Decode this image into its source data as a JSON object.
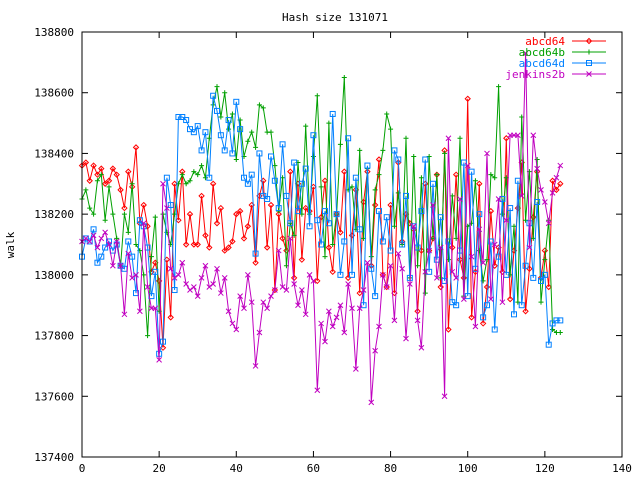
{
  "chart_data": {
    "type": "line",
    "title": "Hash size 131071",
    "xlabel": "",
    "ylabel": "walk",
    "xlim": [
      0,
      140
    ],
    "ylim": [
      137400,
      138800
    ],
    "xticks": [
      0,
      20,
      40,
      60,
      80,
      100,
      120,
      140
    ],
    "yticks": [
      137400,
      137600,
      137800,
      138000,
      138200,
      138400,
      138600,
      138800
    ],
    "legend_position": "top-right",
    "grid": false,
    "series": [
      {
        "name": "abcd64",
        "color": "#ff0000",
        "marker": "diamond",
        "values": [
          138360,
          138370,
          138310,
          138360,
          138330,
          138350,
          138300,
          138310,
          138350,
          138330,
          138280,
          138220,
          138340,
          138290,
          138420,
          138170,
          138230,
          138160,
          138010,
          138040,
          137980,
          137760,
          138050,
          137860,
          138300,
          138180,
          138340,
          138100,
          138200,
          138100,
          138100,
          138260,
          138130,
          138090,
          138300,
          138170,
          138220,
          138080,
          138090,
          138110,
          138200,
          138210,
          138120,
          138160,
          138230,
          138040,
          138260,
          138310,
          138090,
          138230,
          137950,
          138200,
          138120,
          138080,
          138340,
          137990,
          138300,
          138050,
          138220,
          138210,
          138290,
          137980,
          138190,
          138310,
          138090,
          138010,
          138200,
          138140,
          138340,
          137990,
          138130,
          138280,
          137940,
          138240,
          138340,
          138030,
          138230,
          138380,
          138000,
          137960,
          138230,
          137940,
          138370,
          138110,
          138200,
          138170,
          138150,
          137880,
          138080,
          138300,
          138080,
          138120,
          138330,
          137960,
          138410,
          137820,
          138090,
          138330,
          138050,
          137990,
          138580,
          137860,
          138010,
          138300,
          137840,
          137960,
          138210,
          138030,
          138090,
          138010,
          138450,
          137920,
          138080,
          138220,
          138370,
          137880,
          138020,
          138190,
          138340,
          137990,
          138080,
          137960,
          138310,
          138280,
          138300
        ]
      },
      {
        "name": "abcd64b",
        "color": "#00a000",
        "marker": "plus",
        "values": [
          138250,
          138280,
          138220,
          138200,
          138310,
          138330,
          138180,
          138290,
          138200,
          138120,
          138030,
          138200,
          138140,
          138300,
          138100,
          138080,
          138000,
          137800,
          138060,
          138190,
          137880,
          138200,
          138140,
          138100,
          138200,
          138300,
          138330,
          138300,
          138310,
          138340,
          138330,
          138360,
          138320,
          138450,
          138560,
          138620,
          138520,
          138600,
          138480,
          138530,
          138380,
          138510,
          138390,
          138440,
          138470,
          138420,
          138560,
          138550,
          138470,
          138470,
          138360,
          138210,
          138320,
          138030,
          138170,
          138130,
          138370,
          138200,
          138490,
          138200,
          138390,
          138590,
          138290,
          138060,
          138500,
          138100,
          138200,
          138430,
          138650,
          138280,
          138290,
          138150,
          138410,
          138120,
          138350,
          138060,
          138280,
          138330,
          138410,
          138530,
          138480,
          138160,
          138270,
          138100,
          138450,
          137990,
          138390,
          138030,
          138320,
          137940,
          138390,
          138120,
          138330,
          137990,
          138400,
          138050,
          138260,
          138120,
          138450,
          137930,
          138160,
          138170,
          138310,
          138080,
          137980,
          138050,
          138330,
          138320,
          138620,
          138200,
          138320,
          138000,
          138160,
          137910,
          138520,
          138180,
          138340,
          138120,
          138380,
          137910,
          138050,
          138180,
          137820,
          137810,
          137810
        ]
      },
      {
        "name": "abcd64d",
        "color": "#0080ff",
        "marker": "square",
        "values": [
          138060,
          138120,
          138110,
          138150,
          138040,
          138060,
          138090,
          138110,
          138080,
          138100,
          138030,
          138020,
          138110,
          138060,
          137940,
          138180,
          138160,
          138090,
          137930,
          138010,
          137740,
          137780,
          138320,
          138230,
          137950,
          138520,
          138520,
          138510,
          138480,
          138470,
          138490,
          138410,
          138470,
          138320,
          138590,
          138540,
          138460,
          138410,
          138510,
          138400,
          138570,
          138480,
          138320,
          138300,
          138330,
          138070,
          138400,
          138260,
          138250,
          138390,
          138310,
          138220,
          138430,
          138260,
          138170,
          138370,
          138210,
          138300,
          138350,
          138160,
          138460,
          138180,
          138100,
          138210,
          138170,
          138530,
          138200,
          138000,
          138110,
          138450,
          138000,
          138320,
          138150,
          137900,
          138360,
          138020,
          137930,
          138210,
          138110,
          138190,
          138080,
          138410,
          138380,
          138100,
          138260,
          137990,
          138160,
          138090,
          138210,
          138380,
          138010,
          138300,
          138050,
          138190,
          137980,
          138110,
          137910,
          137900,
          138080,
          138370,
          137930,
          138340,
          138020,
          138200,
          137860,
          137900,
          138110,
          137820,
          138060,
          138250,
          138000,
          138220,
          137870,
          138310,
          137900,
          138030,
          138170,
          137990,
          138240,
          137980,
          138000,
          137770,
          137840,
          137850,
          137850
        ]
      },
      {
        "name": "jenkins2b",
        "color": "#c000c0",
        "marker": "cross",
        "values": [
          138110,
          138120,
          138110,
          138130,
          138090,
          138120,
          138140,
          138100,
          138030,
          138110,
          138030,
          137870,
          138070,
          137990,
          138000,
          137880,
          138170,
          137960,
          137890,
          137890,
          137720,
          138300,
          138220,
          138020,
          137990,
          138000,
          138040,
          137970,
          137950,
          137960,
          137930,
          137990,
          138030,
          137960,
          137970,
          138020,
          137940,
          137990,
          137880,
          137840,
          137820,
          137930,
          137890,
          138000,
          137910,
          137700,
          137810,
          137910,
          137890,
          137930,
          137950,
          138080,
          137960,
          137950,
          138120,
          137970,
          137900,
          137950,
          137870,
          138000,
          137980,
          137620,
          137840,
          137780,
          137880,
          137830,
          137860,
          137900,
          137810,
          137970,
          137890,
          137690,
          137890,
          137950,
          138040,
          137580,
          137750,
          137830,
          138000,
          137960,
          138030,
          137850,
          138070,
          138020,
          137790,
          137970,
          138160,
          137850,
          137760,
          138010,
          138080,
          138230,
          137990,
          138090,
          137600,
          138450,
          138010,
          137990,
          138250,
          137920,
          138360,
          138060,
          137830,
          138150,
          138040,
          138400,
          137920,
          138100,
          138250,
          137910,
          138180,
          138460,
          138460,
          138460,
          138260,
          138730,
          138090,
          138460,
          138350,
          138280,
          138240,
          138170,
          138270,
          138320,
          138360
        ]
      }
    ]
  }
}
